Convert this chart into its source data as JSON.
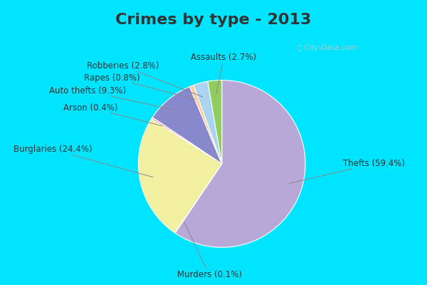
{
  "title": "Crimes by type - 2013",
  "ordered_labels": [
    "Thefts",
    "Murders",
    "Burglaries",
    "Arson",
    "Auto thefts",
    "Rapes",
    "Robberies",
    "Assaults"
  ],
  "ordered_values": [
    59.4,
    0.1,
    24.4,
    0.4,
    9.3,
    0.8,
    2.8,
    2.7
  ],
  "ordered_colors": [
    "#b8a8d8",
    "#d0d0e0",
    "#f0f0a0",
    "#ffb0b8",
    "#8888cc",
    "#ffcc99",
    "#aad4f0",
    "#90cc60"
  ],
  "background_cyan": "#00e5ff",
  "background_chart": "#d8ece0",
  "title_fontsize": 16,
  "label_fontsize": 8.5,
  "watermark_color": "#aacccc"
}
